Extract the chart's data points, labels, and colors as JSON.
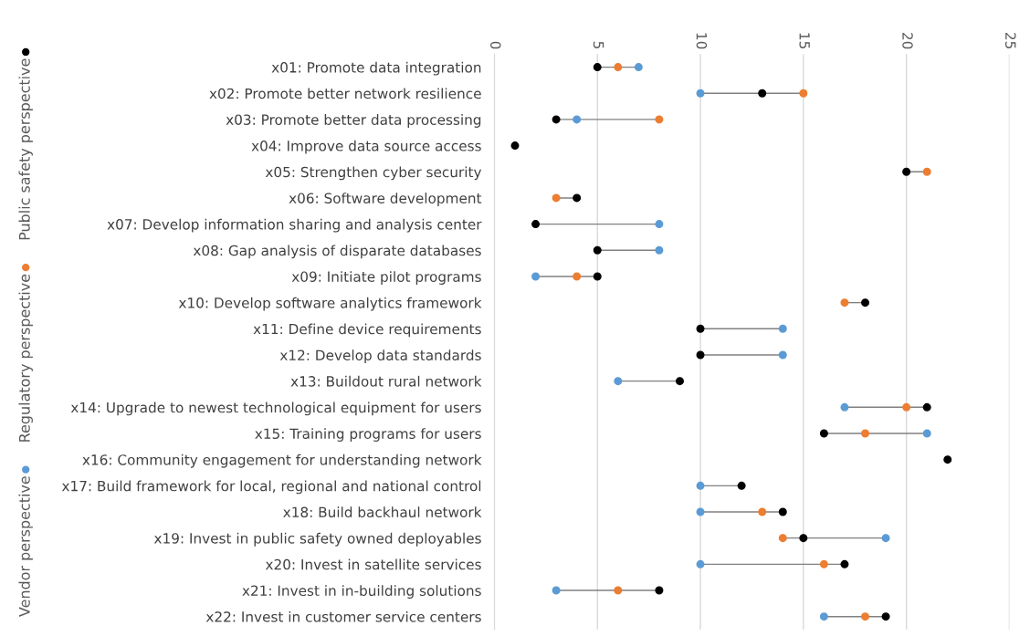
{
  "chart_data": {
    "type": "scatter",
    "orientation": "horizontal",
    "categories": [
      "x01: Promote data integration",
      "x02: Promote better network resilience",
      "x03: Promote better data processing",
      "x04: Improve data source access",
      "x05: Strengthen cyber security",
      "x06: Software development",
      "x07: Develop information sharing and analysis center",
      "x08: Gap analysis of disparate databases",
      "x09: Initiate pilot programs",
      "x10: Develop software analytics framework",
      "x11: Define device requirements",
      "x12: Develop data standards",
      "x13: Buildout rural network",
      "x14: Upgrade to newest technological equipment for users",
      "x15: Training programs for users",
      "x16: Community engagement for understanding network",
      "x17: Build framework for local, regional and national control",
      "x18: Build backhaul network",
      "x19: Invest in public safety owned deployables",
      "x20: Invest in satellite services",
      "x21: Invest in in-building solutions",
      "x22: Invest in customer service centers"
    ],
    "series": [
      {
        "name": "Vendor perspective",
        "color": "#5b9bd5",
        "values": [
          7,
          10,
          4,
          null,
          null,
          null,
          8,
          8,
          2,
          null,
          14,
          14,
          6,
          17,
          21,
          null,
          10,
          10,
          19,
          10,
          3,
          16
        ]
      },
      {
        "name": "Regulatory perspective",
        "color": "#ed7d31",
        "values": [
          6,
          15,
          8,
          null,
          21,
          3,
          null,
          null,
          4,
          17,
          null,
          null,
          null,
          20,
          18,
          null,
          null,
          13,
          14,
          16,
          6,
          18
        ]
      },
      {
        "name": "Public safety perspective",
        "color": "#000000",
        "values": [
          5,
          13,
          3,
          1,
          20,
          4,
          2,
          5,
          5,
          18,
          10,
          10,
          9,
          21,
          16,
          22,
          12,
          14,
          15,
          17,
          8,
          19
        ]
      }
    ],
    "xlim": [
      0,
      25
    ],
    "xticks": [
      0,
      5,
      10,
      15,
      20,
      25
    ],
    "grid": "x",
    "legend": "left",
    "marker": "circle"
  }
}
